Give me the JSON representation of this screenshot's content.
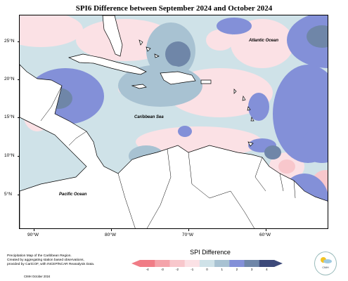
{
  "title": "SPI6 Difference between September 2024 and October 2024",
  "map": {
    "latitude_ticks": [
      "25°N",
      "20°N",
      "15°N",
      "10°N",
      "5°N"
    ],
    "longitude_ticks": [
      "90°W",
      "80°W",
      "70°W",
      "60°W"
    ],
    "labels": {
      "atlantic": "Atlantic Ocean",
      "caribbean": "Caribbean Sea",
      "pacific": "Pacific Ocean"
    },
    "colors": {
      "land": "#ffffff",
      "coastline": "#000000"
    }
  },
  "legend": {
    "title": "SPI Difference",
    "ticks": [
      "-4",
      "-3",
      "-2",
      "-1",
      "0",
      "1",
      "2",
      "3",
      "4"
    ],
    "colors": [
      "#f07c86",
      "#f4a3aa",
      "#f8c7cc",
      "#fbe1e5",
      "#cfe2e8",
      "#a8c2d2",
      "#8390d8",
      "#6f86a8",
      "#3d4a7a"
    ]
  },
  "credit": {
    "line1": "Precipitation Map of the Caribbean Region.",
    "line2": "Created by aggregating station based observations,",
    "line3": "provided by CariCOF, with INCEP/NCAR Reanalysis Data.",
    "date": "CIMH October 2024"
  },
  "logo": {
    "text": "CIMH",
    "icon": "cimh-logo-icon"
  }
}
